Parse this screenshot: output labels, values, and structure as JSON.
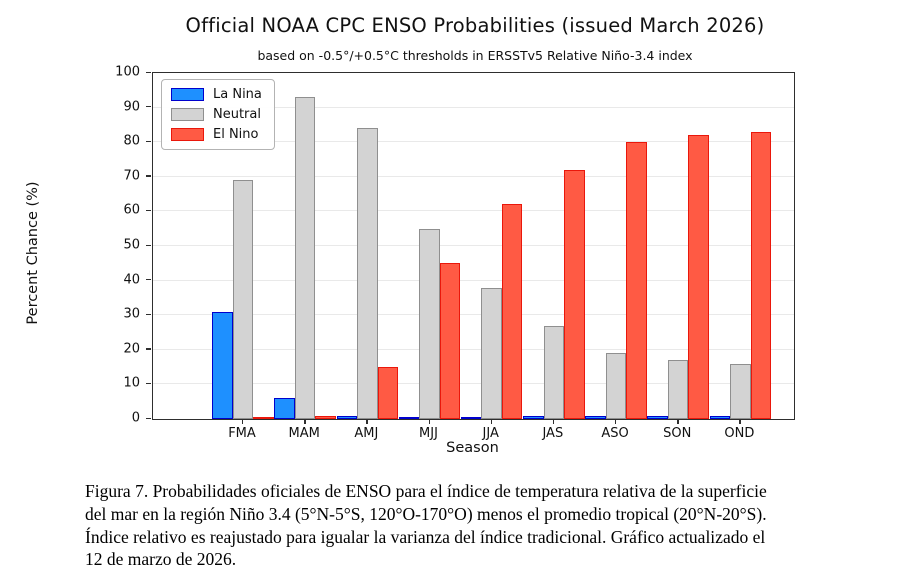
{
  "title": "Official NOAA CPC ENSO Probabilities (issued March 2026)",
  "subtitle": "based on -0.5°/+0.5°C thresholds in ERSSTv5 Relative Niño-3.4 index",
  "chart_data": {
    "type": "bar",
    "categories": [
      "FMA",
      "MAM",
      "AMJ",
      "MJJ",
      "JJA",
      "JAS",
      "ASO",
      "SON",
      "OND"
    ],
    "series": [
      {
        "name": "La Nina",
        "fill_color": "#1e90ff",
        "edge_color": "#0000cd",
        "values": [
          31,
          6,
          1,
          0,
          0,
          1,
          1,
          1,
          1
        ]
      },
      {
        "name": "Neutral",
        "fill_color": "#d3d3d3",
        "edge_color": "#8f8f8f",
        "values": [
          69,
          93,
          84,
          55,
          38,
          27,
          19,
          17,
          16
        ]
      },
      {
        "name": "El Nino",
        "fill_color": "#ff5a44",
        "edge_color": "#ea170b",
        "values": [
          0,
          1,
          15,
          45,
          62,
          72,
          80,
          82,
          83
        ]
      }
    ],
    "xlabel": "Season",
    "ylabel": "Percent Chance (%)",
    "ylim": [
      0,
      100
    ],
    "yticks": [
      0,
      10,
      20,
      30,
      40,
      50,
      60,
      70,
      80,
      90,
      100
    ],
    "grid": true,
    "legend_position": "upper left"
  },
  "caption": {
    "lines": [
      "Figura 7. Probabilidades oficiales de ENSO para el índice de temperatura relativa de la superficie",
      "del mar en la región Niño 3.4 (5°N-5°S, 120°O-170°O) menos el promedio tropical (20°N-20°S).",
      "Índice relativo es reajustado para igualar la varianza del índice tradicional. Gráfico actualizado el",
      "12 de marzo de 2026."
    ]
  }
}
